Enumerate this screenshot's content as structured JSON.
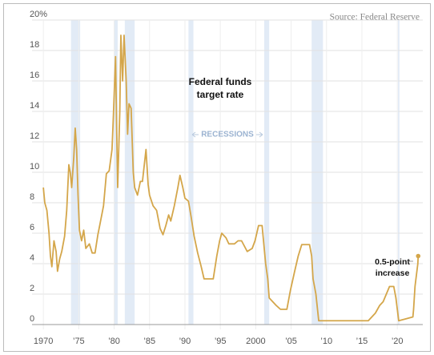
{
  "chart_data": {
    "type": "line",
    "source": "Source: Federal Reserve",
    "label_lines": [
      "Federal funds",
      "target rate"
    ],
    "recessions_label": "RECESSIONS",
    "end_label_lines": [
      "0.5-point",
      "increase"
    ],
    "color": "#d4a64a",
    "recession_color": "#e2ebf6",
    "grid": true,
    "xlim": [
      1968.4,
      2023.6
    ],
    "ylim": [
      0,
      20
    ],
    "yticks": [
      0,
      2,
      4,
      6,
      8,
      10,
      12,
      14,
      16,
      18,
      {
        "value": 20,
        "label": "20%"
      }
    ],
    "xticks": [
      1970,
      {
        "value": 1975,
        "label": "’75"
      },
      {
        "value": 1980,
        "label": "’80"
      },
      {
        "value": 1985,
        "label": "’85"
      },
      {
        "value": 1990,
        "label": "’90"
      },
      {
        "value": 1995,
        "label": "’95"
      },
      2000,
      {
        "value": 2005,
        "label": "’05"
      },
      {
        "value": 2010,
        "label": "’10"
      },
      {
        "value": 2015,
        "label": "’15"
      },
      {
        "value": 2020,
        "label": "’20"
      }
    ],
    "recessions": [
      [
        1973.9,
        1975.2
      ],
      [
        1980.0,
        1980.5
      ],
      [
        1981.5,
        1982.9
      ],
      [
        1990.5,
        1991.2
      ],
      [
        2001.2,
        2001.9
      ],
      [
        2007.9,
        2009.5
      ],
      [
        2020.1,
        2020.3
      ]
    ],
    "x": [
      1970.0,
      1970.2,
      1970.5,
      1970.8,
      1971.0,
      1971.2,
      1971.5,
      1971.8,
      1972.0,
      1972.3,
      1972.6,
      1973.0,
      1973.3,
      1973.6,
      1973.8,
      1974.0,
      1974.3,
      1974.5,
      1974.7,
      1974.9,
      1975.1,
      1975.4,
      1975.7,
      1976.0,
      1976.5,
      1976.9,
      1977.3,
      1977.7,
      1978.0,
      1978.5,
      1978.9,
      1979.3,
      1979.7,
      1979.9,
      1980.2,
      1980.35,
      1980.5,
      1980.8,
      1980.95,
      1981.2,
      1981.4,
      1981.7,
      1981.9,
      1982.1,
      1982.4,
      1982.7,
      1982.9,
      1983.3,
      1983.7,
      1984.0,
      1984.5,
      1984.8,
      1985.0,
      1985.5,
      1986.0,
      1986.5,
      1986.9,
      1987.3,
      1987.7,
      1988.0,
      1988.5,
      1989.0,
      1989.3,
      1989.7,
      1990.0,
      1990.5,
      1990.9,
      1991.3,
      1991.8,
      1992.3,
      1992.7,
      1993.5,
      1994.0,
      1994.5,
      1994.9,
      1995.2,
      1995.8,
      1996.2,
      1997.0,
      1997.5,
      1998.0,
      1998.8,
      1999.5,
      1999.9,
      2000.4,
      2000.9,
      2001.1,
      2001.4,
      2001.7,
      2001.9,
      2002.9,
      2003.5,
      2004.4,
      2004.9,
      2005.5,
      2006.0,
      2006.5,
      2007.6,
      2007.9,
      2008.1,
      2008.5,
      2008.9,
      2015.9,
      2016.9,
      2017.5,
      2018.0,
      2018.9,
      2019.5,
      2019.8,
      2020.2,
      2022.2,
      2022.3,
      2022.4,
      2022.5,
      2022.7,
      2022.9,
      2022.95
    ],
    "values": [
      9.0,
      8,
      7.5,
      6,
      4.5,
      3.8,
      5.5,
      4.8,
      3.5,
      4.3,
      4.8,
      5.8,
      7.5,
      10.5,
      10,
      9,
      11,
      12.9,
      11.5,
      8.5,
      6.2,
      5.5,
      6.2,
      5,
      5.3,
      4.7,
      4.7,
      5.9,
      6.6,
      7.8,
      9.9,
      10.1,
      11.5,
      13.8,
      17.6,
      13,
      9,
      14,
      19,
      16,
      19,
      16,
      12.5,
      14.5,
      14.2,
      10,
      9,
      8.5,
      9.4,
      9.4,
      11.5,
      9.2,
      8.5,
      7.8,
      7.5,
      6.3,
      5.9,
      6.5,
      7.2,
      6.8,
      7.8,
      9.0,
      9.8,
      9.0,
      8.3,
      8.1,
      7.0,
      5.8,
      4.7,
      3.8,
      3.0,
      3.0,
      3.0,
      4.5,
      5.5,
      6.0,
      5.7,
      5.3,
      5.3,
      5.5,
      5.5,
      4.8,
      5.0,
      5.5,
      6.5,
      6.5,
      5.5,
      4.0,
      3.0,
      1.75,
      1.25,
      1.0,
      1.0,
      2.25,
      3.5,
      4.5,
      5.25,
      5.25,
      4.5,
      3.0,
      2.0,
      0.25,
      0.25,
      0.75,
      1.25,
      1.5,
      2.5,
      2.5,
      1.75,
      0.25,
      0.5,
      1.0,
      1.75,
      2.5,
      3.25,
      4.0,
      4.5
    ]
  }
}
